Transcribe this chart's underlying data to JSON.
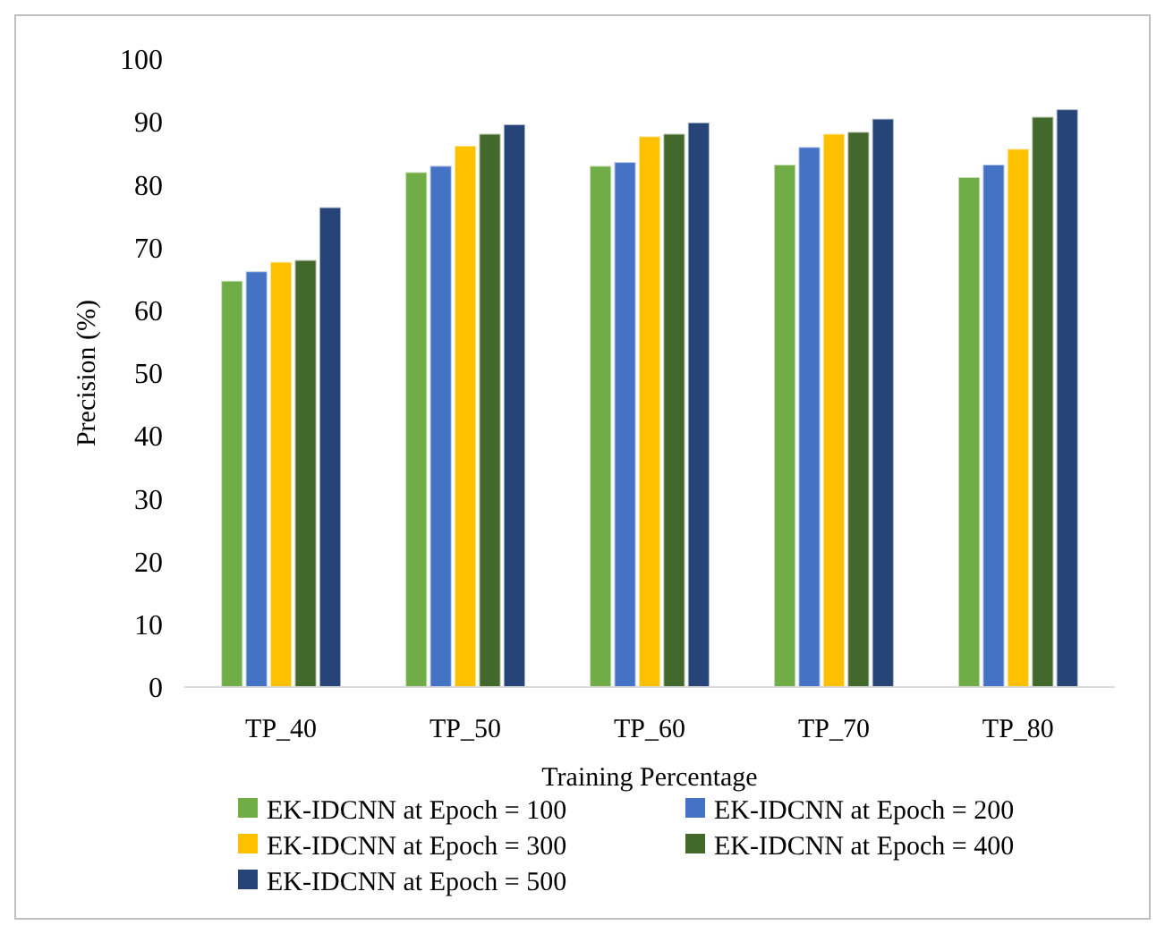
{
  "chart_data": {
    "type": "bar",
    "xlabel": "Training Percentage",
    "ylabel": "Precision (%)",
    "categories": [
      "TP_40",
      "TP_50",
      "TP_60",
      "TP_70",
      "TP_80"
    ],
    "series": [
      {
        "name": "EK-IDCNN at Epoch = 100",
        "color": "#70ad47",
        "values": [
          64.7,
          82.0,
          83.0,
          83.2,
          81.2
        ]
      },
      {
        "name": "EK-IDCNN at Epoch = 200",
        "color": "#4472c4",
        "values": [
          66.2,
          83.0,
          83.6,
          86.0,
          83.2
        ]
      },
      {
        "name": "EK-IDCNN at Epoch = 300",
        "color": "#ffc000",
        "values": [
          67.7,
          86.2,
          87.7,
          88.1,
          85.7
        ]
      },
      {
        "name": "EK-IDCNN at Epoch = 400",
        "color": "#43682b",
        "values": [
          68.0,
          88.1,
          88.1,
          88.4,
          90.8
        ]
      },
      {
        "name": "EK-IDCNN at Epoch = 500",
        "color": "#264478",
        "values": [
          76.4,
          89.6,
          89.9,
          90.5,
          92.0
        ]
      }
    ],
    "ylim": [
      0,
      100
    ],
    "yticks": [
      0,
      10,
      20,
      30,
      40,
      50,
      60,
      70,
      80,
      90,
      100
    ],
    "grid": false,
    "legend": "bottom"
  }
}
